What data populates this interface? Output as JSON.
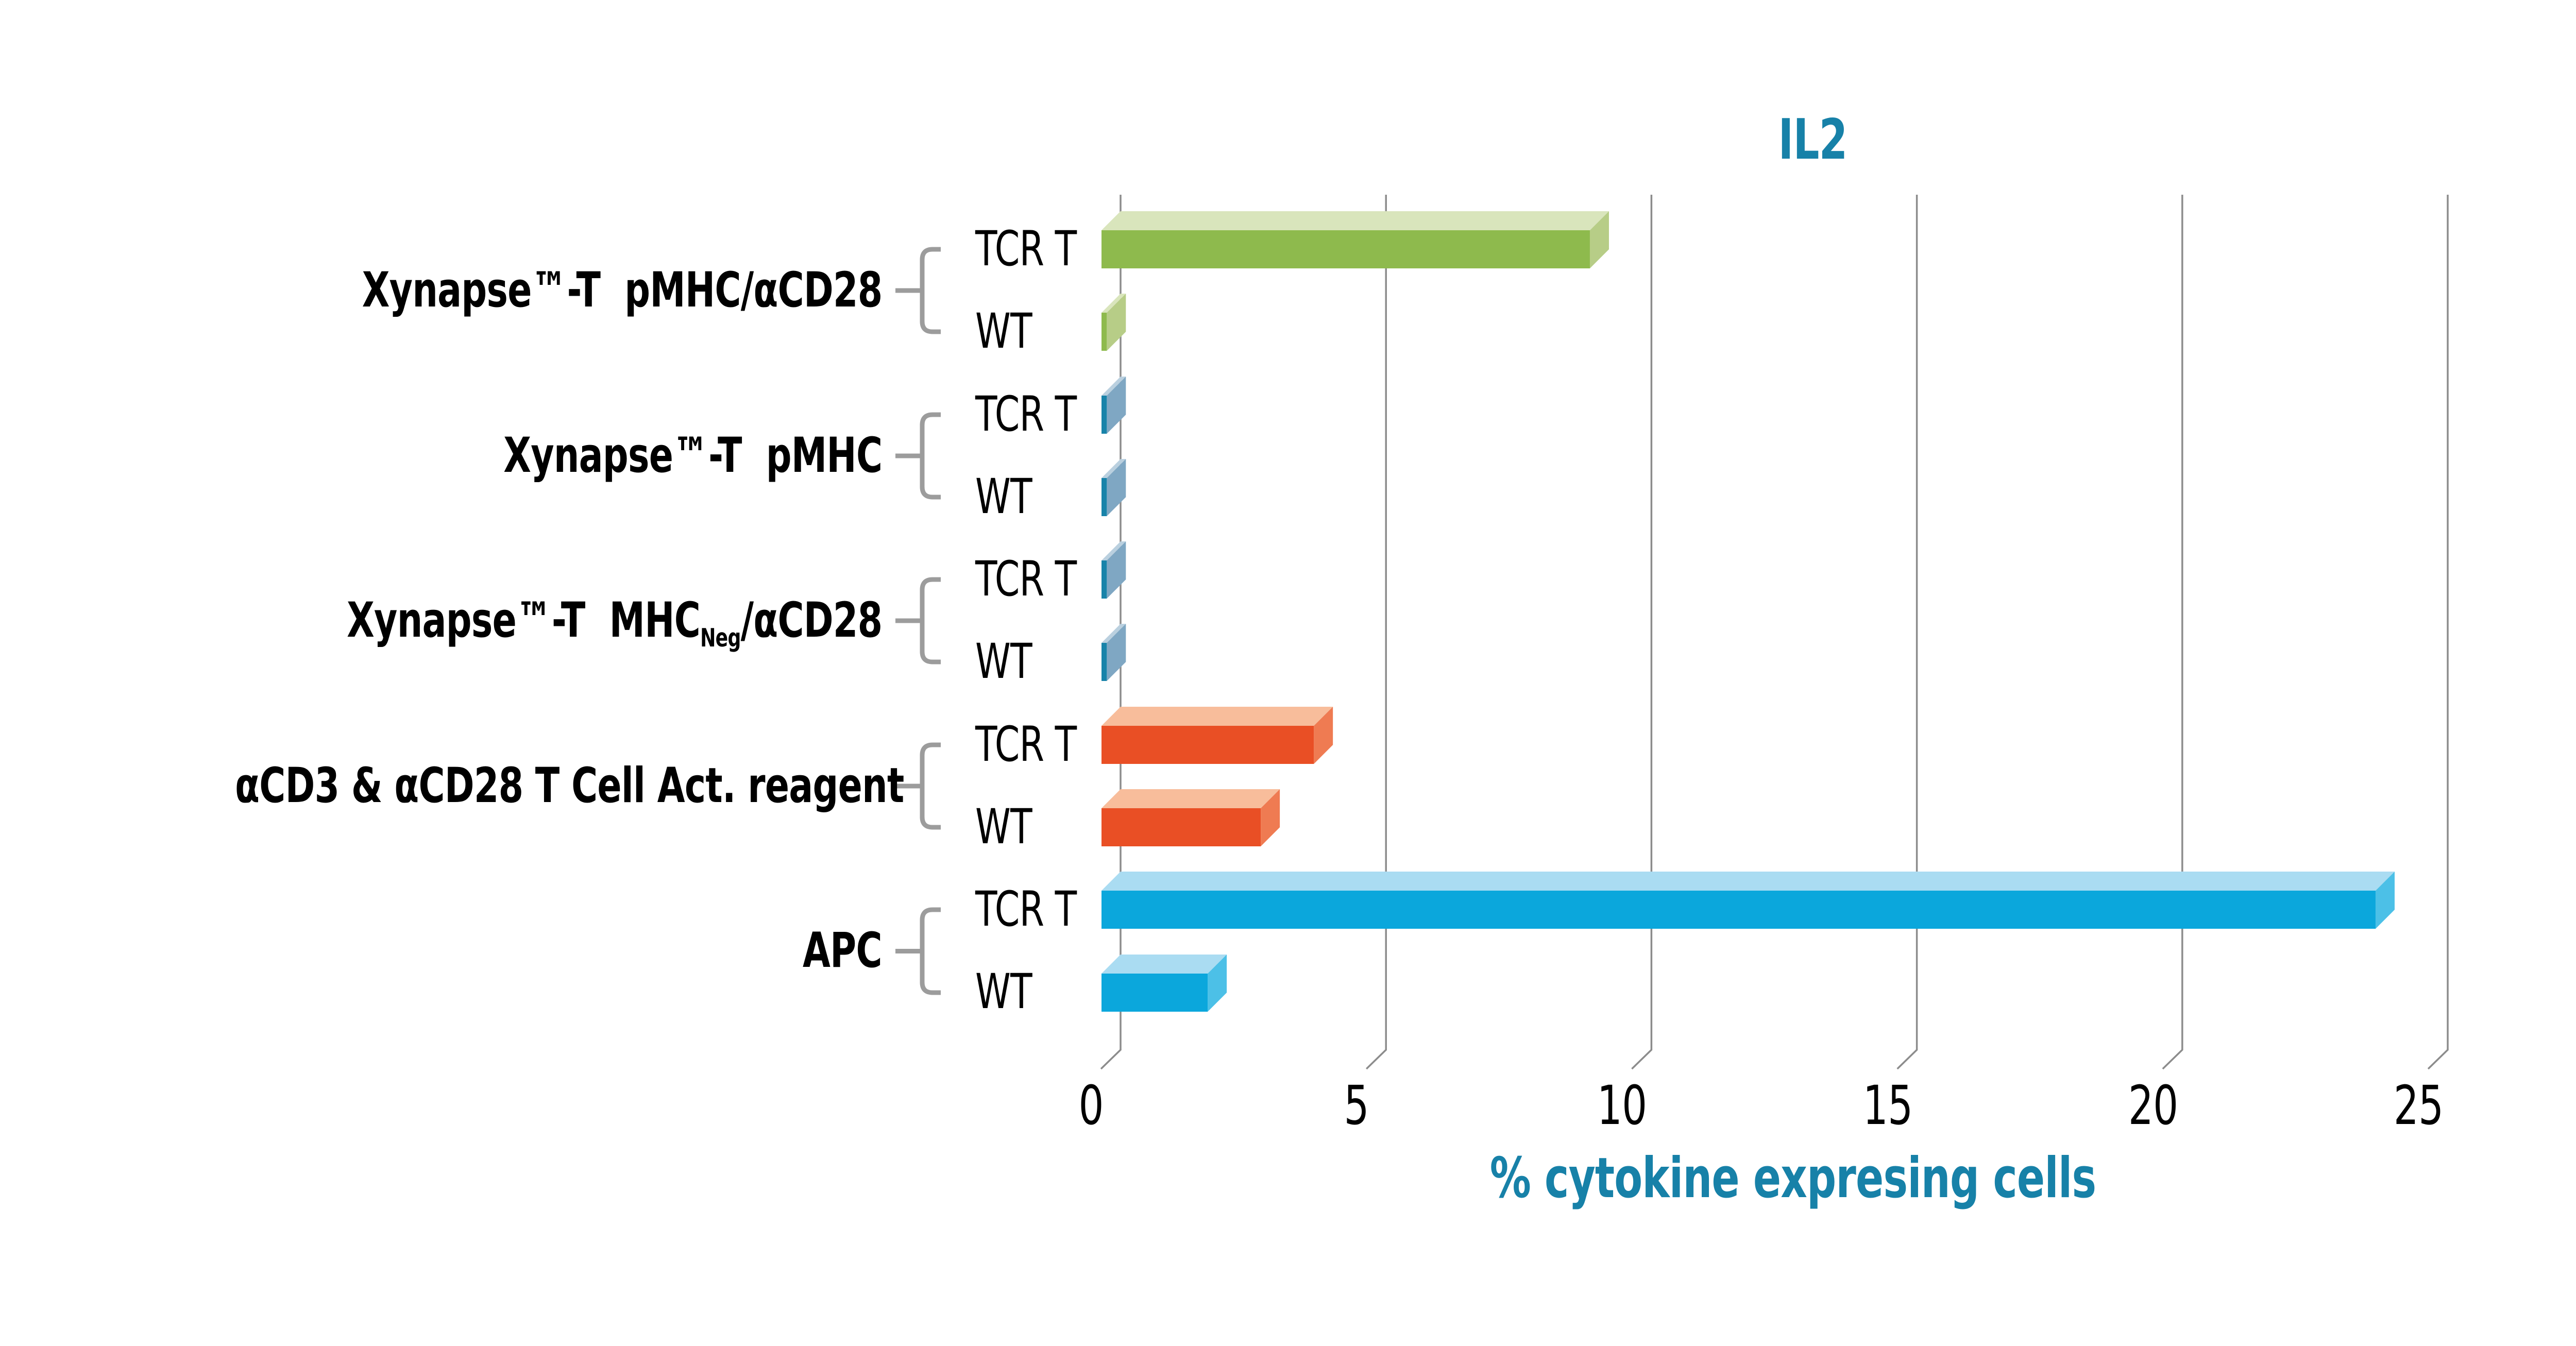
{
  "title": "IL2",
  "axis": {
    "xlabel": "% cytokine expresing cells",
    "ticks": [
      "0",
      "5",
      "10",
      "15",
      "20",
      "25"
    ]
  },
  "row_series": [
    "TCR T",
    "WT"
  ],
  "groups": [
    {
      "label_pre": "Xynapse™-T  pMHC/αCD28",
      "label_sub": "",
      "label_post": "",
      "color": "green",
      "rows": [
        {
          "label": "TCR T",
          "value": 9.2
        },
        {
          "label": "WT",
          "value": 0.1
        }
      ]
    },
    {
      "label_pre": "Xynapse™-T  pMHC",
      "label_sub": "",
      "label_post": "",
      "color": "steelblue",
      "rows": [
        {
          "label": "TCR T",
          "value": 0.1
        },
        {
          "label": "WT",
          "value": 0.1
        }
      ]
    },
    {
      "label_pre": "Xynapse™-T  MHC",
      "label_sub": "Neg",
      "label_post": "/αCD28",
      "color": "steelblue",
      "rows": [
        {
          "label": "TCR T",
          "value": 0.1
        },
        {
          "label": "WT",
          "value": 0.1
        }
      ]
    },
    {
      "label_pre": "αCD3 & αCD28 T Cell Act. reagent",
      "label_sub": "",
      "label_post": "",
      "color": "orange",
      "rows": [
        {
          "label": "TCR T",
          "value": 4.0
        },
        {
          "label": "WT",
          "value": 3.0
        }
      ]
    },
    {
      "label_pre": "APC",
      "label_sub": "",
      "label_post": "",
      "color": "cyan",
      "rows": [
        {
          "label": "TCR T",
          "value": 24.0
        },
        {
          "label": "WT",
          "value": 2.0
        }
      ]
    }
  ],
  "colors": {
    "green": {
      "front": "#8EBA4D",
      "side": "#B7CD87",
      "top": "#D9E5BC"
    },
    "steelblue": {
      "front": "#1883A9",
      "side": "#7FA7C3",
      "top": "#BAD0DF"
    },
    "orange": {
      "front": "#E94F25",
      "side": "#EF7B52",
      "top": "#F8BD9B"
    },
    "cyan": {
      "front": "#0BA7DC",
      "side": "#4CC0E7",
      "top": "#AADCF2"
    },
    "grid": "#8C8C8C",
    "bracket": "#9C9C9C",
    "accent_text": "#1781A8",
    "label_text": "#000000"
  },
  "chart_data": {
    "type": "bar",
    "orientation": "horizontal",
    "style": "3d-extruded",
    "title": "IL2",
    "xlabel": "% cytokine expresing cells",
    "xlim": [
      0,
      25
    ],
    "xticks": [
      0,
      5,
      10,
      15,
      20,
      25
    ],
    "grid": "vertical-gridlines",
    "legend": "none (series labeled per-row as TCR T / WT)",
    "categories": [
      "Xynapse™-T pMHC/αCD28",
      "Xynapse™-T pMHC",
      "Xynapse™-T MHCNeg/αCD28",
      "αCD3 & αCD28 T Cell Act. reagent",
      "APC"
    ],
    "series": [
      {
        "name": "TCR T",
        "values": [
          9.2,
          0.1,
          0.1,
          4.0,
          24.0
        ]
      },
      {
        "name": "WT",
        "values": [
          0.1,
          0.1,
          0.1,
          3.0,
          2.0
        ]
      }
    ]
  }
}
